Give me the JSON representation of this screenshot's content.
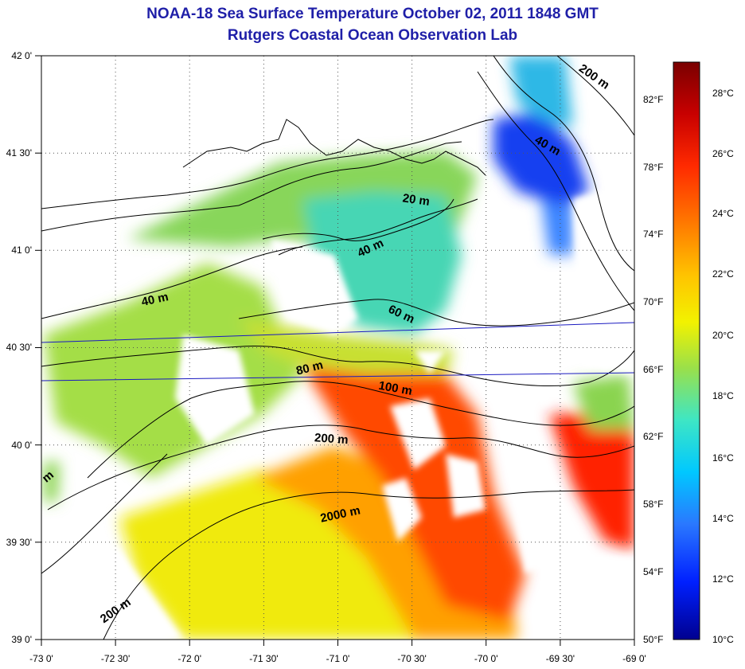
{
  "title": "NOAA-18 Sea Surface Temperature October 02, 2011 1848 GMT",
  "subtitle": "Rutgers Coastal Ocean Observation Lab",
  "map": {
    "lon_range": [
      -73,
      -69
    ],
    "lat_range": [
      39,
      42
    ],
    "lon_labels": [
      "-73 0'",
      "-72 30'",
      "-72 0'",
      "-71 30'",
      "-71 0'",
      "-70 30'",
      "-70 0'",
      "-69 30'",
      "-69 0'"
    ],
    "lat_labels": [
      "42 0'",
      "41 30'",
      "41 0'",
      "40 30'",
      "40 0'",
      "39 30'",
      "39 0'"
    ],
    "grid": "dotted",
    "contour_labels": [
      "200 m",
      "40 m",
      "20 m",
      "40 m",
      "40 m",
      "60 m",
      "80 m",
      "100 m",
      "200 m",
      "2000 m",
      "200 m",
      "m"
    ]
  },
  "colorbar": {
    "celsius_labels": [
      "28°C",
      "26°C",
      "24°C",
      "22°C",
      "20°C",
      "18°C",
      "16°C",
      "14°C",
      "12°C",
      "10°C"
    ],
    "fahrenheit_labels": [
      "82°F",
      "78°F",
      "74°F",
      "70°F",
      "66°F",
      "62°F",
      "58°F",
      "54°F",
      "50°F"
    ],
    "colors": [
      "#7a0000",
      "#c80000",
      "#ff2a00",
      "#ff7a00",
      "#ffc400",
      "#f2f200",
      "#9ae04a",
      "#3ee6c4",
      "#00c8ff",
      "#2a78ff",
      "#0020ff",
      "#00008f"
    ]
  }
}
